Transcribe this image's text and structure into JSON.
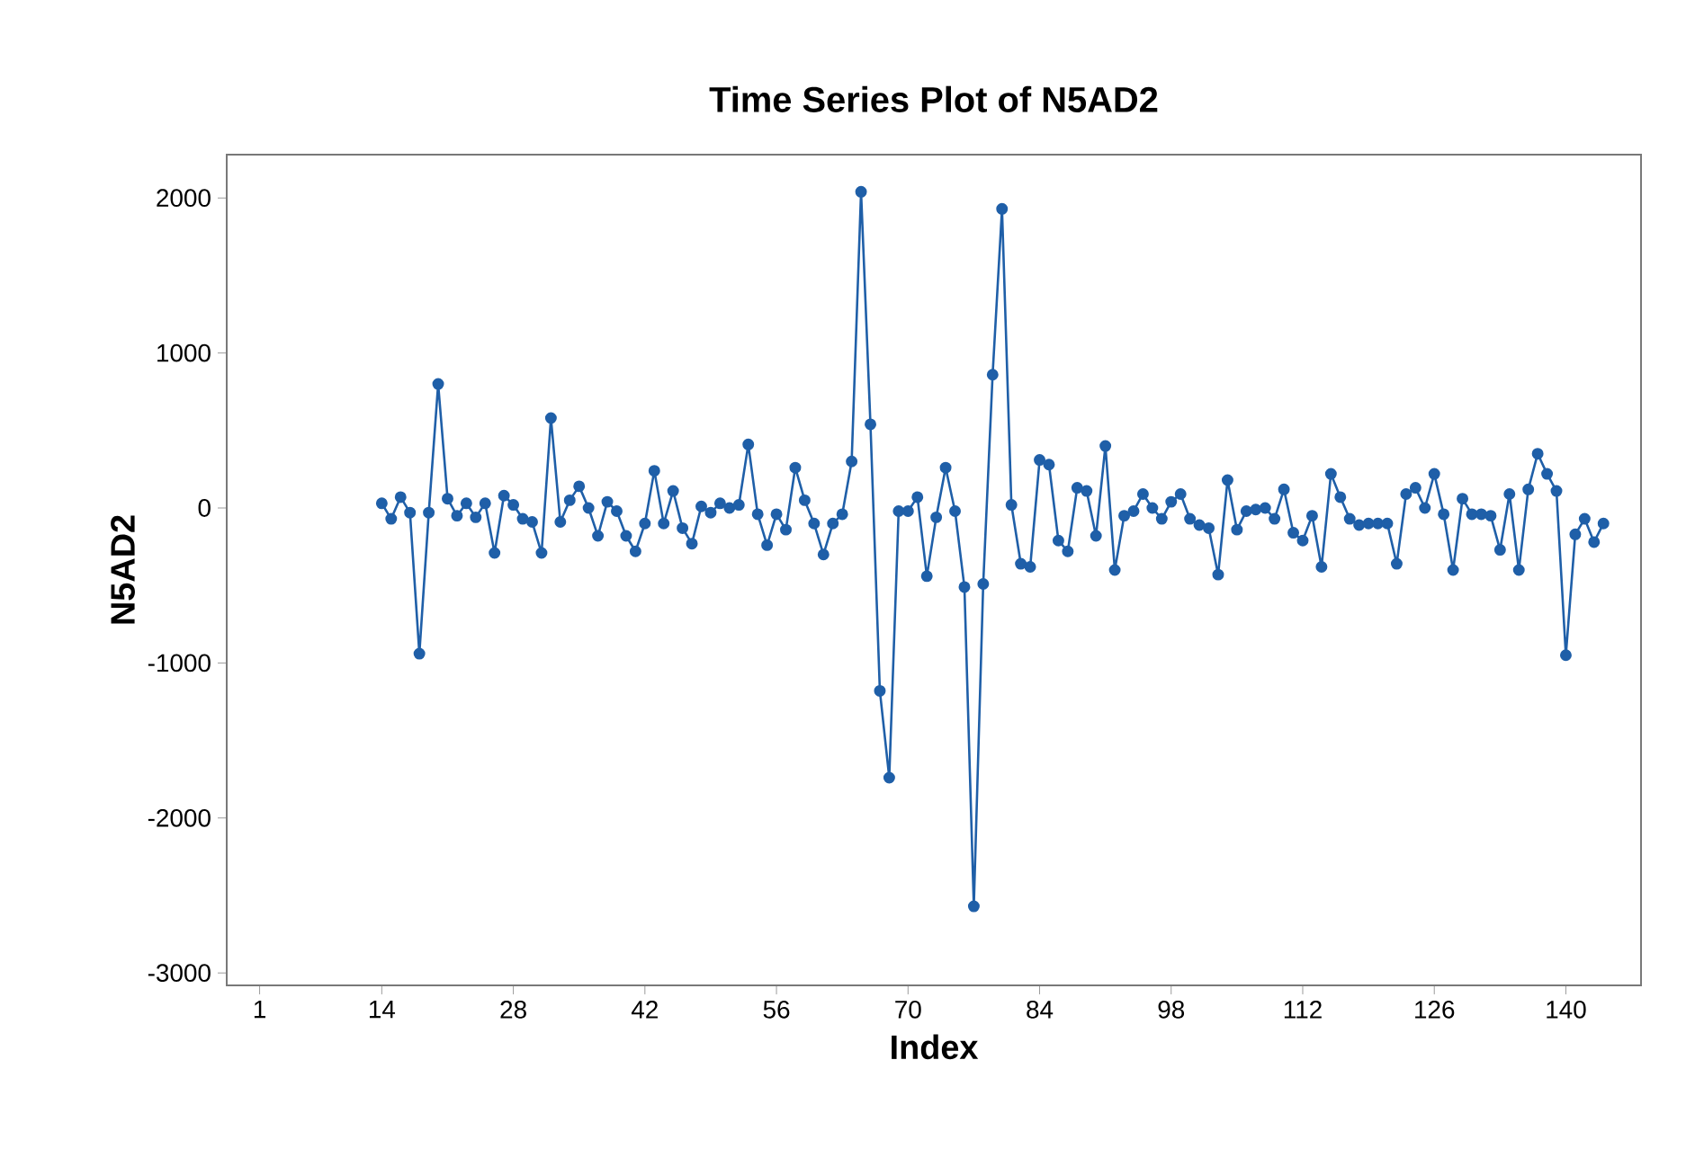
{
  "chart_data": {
    "type": "line",
    "title": "Time Series Plot of N5AD2",
    "xlabel": "Index",
    "ylabel": "N5AD2",
    "x": [
      14,
      15,
      16,
      17,
      18,
      19,
      20,
      21,
      22,
      23,
      24,
      25,
      26,
      27,
      28,
      29,
      30,
      31,
      32,
      33,
      34,
      35,
      36,
      37,
      38,
      39,
      40,
      41,
      42,
      43,
      44,
      45,
      46,
      47,
      48,
      49,
      50,
      51,
      52,
      53,
      54,
      55,
      56,
      57,
      58,
      59,
      60,
      61,
      62,
      63,
      64,
      65,
      66,
      67,
      68,
      69,
      70,
      71,
      72,
      73,
      74,
      75,
      76,
      77,
      78,
      79,
      80,
      81,
      82,
      83,
      84,
      85,
      86,
      87,
      88,
      89,
      90,
      91,
      92,
      93,
      94,
      95,
      96,
      97,
      98,
      99,
      100,
      101,
      102,
      103,
      104,
      105,
      106,
      107,
      108,
      109,
      110,
      111,
      112,
      113,
      114,
      115,
      116,
      117,
      118,
      119,
      120,
      121,
      122,
      123,
      124,
      125,
      126,
      127,
      128,
      129,
      130,
      131,
      132,
      133,
      134,
      135,
      136,
      137,
      138,
      139,
      140,
      141,
      142,
      143,
      144
    ],
    "series": [
      {
        "color": "#1f5fa8",
        "values": [
          30,
          -70,
          70,
          -30,
          -940,
          -30,
          800,
          60,
          -50,
          30,
          -60,
          30,
          -290,
          80,
          20,
          -70,
          -90,
          -290,
          580,
          -90,
          50,
          140,
          0,
          -180,
          40,
          -20,
          -180,
          -280,
          -100,
          240,
          -100,
          110,
          -130,
          -230,
          10,
          -30,
          30,
          0,
          20,
          410,
          -40,
          -240,
          -40,
          -140,
          260,
          50,
          -100,
          -300,
          -100,
          -40,
          300,
          2040,
          540,
          -1180,
          -1740,
          -20,
          -20,
          70,
          -440,
          -60,
          260,
          -20,
          -510,
          -2570,
          -490,
          860,
          1930,
          20,
          -360,
          -380,
          310,
          280,
          -210,
          -280,
          130,
          110,
          -180,
          400,
          -400,
          -50,
          -20,
          90,
          0,
          -70,
          40,
          90,
          -70,
          -110,
          -130,
          -430,
          180,
          -140,
          -20,
          -10,
          0,
          -70,
          120,
          -160,
          -210,
          -50,
          -380,
          220,
          70,
          -70,
          -110,
          -100,
          -100,
          -100,
          -360,
          90,
          130,
          0,
          220,
          -40,
          -400,
          60,
          -40,
          -40,
          -50,
          -270,
          90,
          -400,
          120,
          350,
          220,
          110,
          -950,
          -170,
          -70,
          -220,
          -100
        ]
      }
    ],
    "xlim": [
      -2.5,
      148
    ],
    "ylim": [
      -3080,
      2280
    ],
    "xticks": [
      1,
      14,
      28,
      42,
      56,
      70,
      84,
      98,
      112,
      126,
      140
    ],
    "yticks": [
      -3000,
      -2000,
      -1000,
      0,
      1000,
      2000
    ],
    "marker": "circle",
    "line_style": "solid",
    "grid": false
  }
}
